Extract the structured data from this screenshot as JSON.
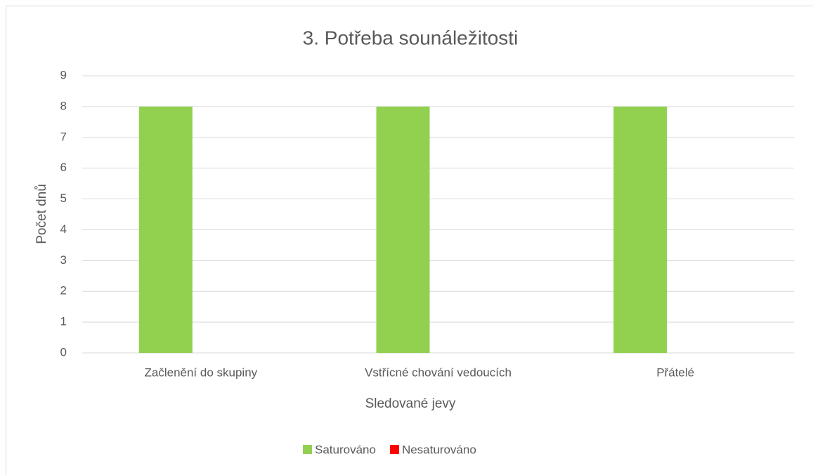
{
  "chart_data": {
    "type": "bar",
    "title": "3. Potřeba sounáležitosti",
    "x_label": "Sledované jevy",
    "y_label": "Počet dnů",
    "categories": [
      "Začlenění do skupiny",
      "Vstřícné chování vedoucích",
      "Přátelé"
    ],
    "series": [
      {
        "name": "Saturováno",
        "color": "#92d050",
        "values": [
          8,
          8,
          8
        ]
      },
      {
        "name": "Nesaturováno",
        "color": "#ff0000",
        "values": [
          0,
          0,
          0
        ]
      }
    ],
    "ylim": [
      0,
      9
    ],
    "yticks": [
      0,
      1,
      2,
      3,
      4,
      5,
      6,
      7,
      8,
      9
    ],
    "grid": true,
    "legend": "bottom"
  }
}
